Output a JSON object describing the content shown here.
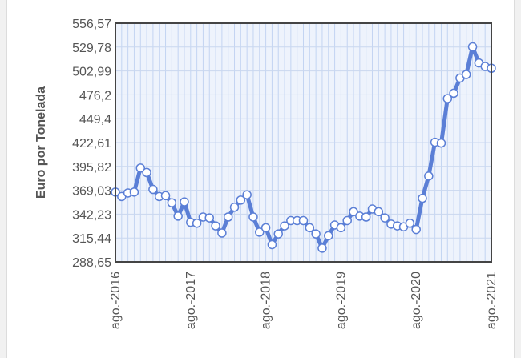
{
  "chart_data": {
    "type": "line",
    "ylabel": "Euro por Tonelada",
    "xlabel": "",
    "ylim": [
      288.65,
      556.57
    ],
    "y_ticks": [
      "556,57",
      "529,78",
      "502,99",
      "476,2",
      "449,4",
      "422,61",
      "395,82",
      "369,03",
      "342,23",
      "315,44",
      "288,65"
    ],
    "x_tick_labels": [
      "ago.-2016",
      "ago.-2017",
      "ago.-2018",
      "ago.-2019",
      "ago.-2020",
      "ago.-2021"
    ],
    "x_start": "2016-08",
    "x_end": "2021-08",
    "grid": true,
    "legend": "none",
    "series": [
      {
        "x": [
          "2016-08",
          "2016-09",
          "2016-10",
          "2016-11",
          "2016-12",
          "2017-01",
          "2017-02",
          "2017-03",
          "2017-04",
          "2017-05",
          "2017-06",
          "2017-07",
          "2017-08",
          "2017-09",
          "2017-10",
          "2017-11",
          "2017-12",
          "2018-01",
          "2018-02",
          "2018-03",
          "2018-04",
          "2018-05",
          "2018-06",
          "2018-07",
          "2018-08",
          "2018-09",
          "2018-10",
          "2018-11",
          "2018-12",
          "2019-01",
          "2019-02",
          "2019-03",
          "2019-04",
          "2019-05",
          "2019-06",
          "2019-07",
          "2019-08",
          "2019-09",
          "2019-10",
          "2019-11",
          "2019-12",
          "2020-01",
          "2020-02",
          "2020-03",
          "2020-04",
          "2020-05",
          "2020-06",
          "2020-07",
          "2020-08",
          "2020-09",
          "2020-10",
          "2020-11",
          "2020-12",
          "2021-01",
          "2021-02",
          "2021-03",
          "2021-04",
          "2021-05",
          "2021-06",
          "2021-07",
          "2021-08"
        ],
        "values": [
          367,
          362,
          366,
          367,
          394,
          389,
          370,
          362,
          363,
          355,
          340,
          356,
          333,
          332,
          339,
          338,
          329,
          321,
          339,
          350,
          358,
          364,
          339,
          322,
          327,
          308,
          320,
          329,
          335,
          335,
          335,
          327,
          320,
          304,
          318,
          330,
          327,
          335,
          345,
          340,
          339,
          348,
          345,
          338,
          331,
          329,
          328,
          332,
          325,
          360,
          385,
          423,
          422,
          472,
          478,
          495,
          499,
          530,
          512,
          508,
          506
        ]
      }
    ],
    "colors": {
      "line": "#5b7fd6",
      "marker_fill": "#ffffff",
      "marker_stroke": "#5b7fd6",
      "plot_bg": "#eef3fc",
      "grid_h": "#c9d7ef",
      "grid_v": "#c3d4f2",
      "frame": "#444444"
    }
  }
}
